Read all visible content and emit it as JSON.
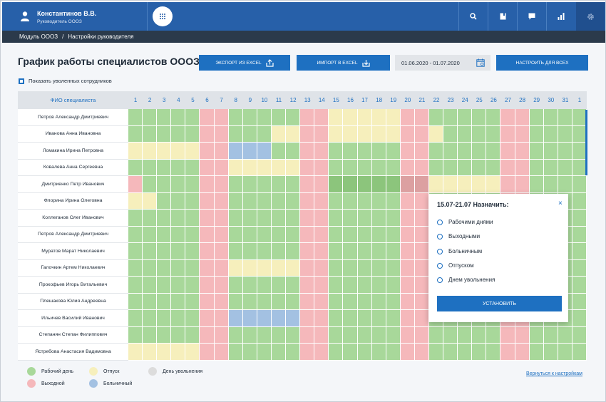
{
  "user": {
    "name": "Константинов В.В.",
    "role": "Руководитель ОООЗ"
  },
  "breadcrumb": {
    "module": "Модуль ОООЗ",
    "separator": "/",
    "current": "Настройки руководителя"
  },
  "page": {
    "title": "График работы специалистов ОООЗ"
  },
  "toolbar": {
    "export_label": "Экспорт из Excel",
    "import_label": "Импорт в Excel",
    "date_range": "01.06.2020 - 01.07.2020",
    "configure_all_label": "Настроить для всех"
  },
  "show_fired": {
    "label": "Показать уволенных сотрудников",
    "checked": true
  },
  "table": {
    "name_header": "ФИО специалиста",
    "days": [
      "1",
      "2",
      "3",
      "4",
      "5",
      "6",
      "7",
      "8",
      "9",
      "10",
      "11",
      "12",
      "13",
      "14",
      "15",
      "16",
      "17",
      "18",
      "19",
      "20",
      "21",
      "22",
      "23",
      "24",
      "25",
      "26",
      "27",
      "28",
      "29",
      "30",
      "31",
      "1"
    ],
    "weekend_columns": [
      6,
      7,
      13,
      14,
      20,
      21,
      27,
      28
    ],
    "rows": [
      {
        "name": "Петров Александр Дмитриевич",
        "vacation": [
          [
            15,
            19
          ]
        ],
        "sick": []
      },
      {
        "name": "Иванова Анна Ивановна",
        "vacation": [
          [
            11,
            22
          ]
        ],
        "sick": []
      },
      {
        "name": "Ломакина Ирина Петровна",
        "vacation": [
          [
            1,
            5
          ]
        ],
        "sick": [
          [
            8,
            10
          ]
        ]
      },
      {
        "name": "Ковалева Анна Сергеевна",
        "vacation": [
          [
            8,
            12
          ]
        ],
        "sick": []
      },
      {
        "name": "Дмитриенко Петр Иванович",
        "vacation": [
          [
            22,
            27
          ]
        ],
        "sick": [],
        "first_day_weekend": true,
        "selected": [
          15,
          21
        ]
      },
      {
        "name": "Флорина Ирина Олеговна",
        "vacation": [
          [
            1,
            2
          ]
        ],
        "sick": []
      },
      {
        "name": "Коллеганов Олег Иванович",
        "vacation": [],
        "sick": []
      },
      {
        "name": "Петров Александр Дмитриевич",
        "vacation": [],
        "sick": []
      },
      {
        "name": "Муратов Марат Николаевич",
        "vacation": [],
        "sick": []
      },
      {
        "name": "Галочкин Артем Николаевич",
        "vacation": [
          [
            8,
            12
          ]
        ],
        "sick": []
      },
      {
        "name": "Прокофьев Игорь Витальевич",
        "vacation": [],
        "sick": []
      },
      {
        "name": "Плешакова Юлия Андреевна",
        "vacation": [],
        "sick": []
      },
      {
        "name": "Ильичев Василий Иванович",
        "vacation": [],
        "sick": [
          [
            8,
            12
          ]
        ]
      },
      {
        "name": "Степанян Степан Филиппович",
        "vacation": [],
        "sick": []
      },
      {
        "name": "Ястребова Анастасия Вадимовна",
        "vacation": [
          [
            1,
            5
          ]
        ],
        "sick": []
      }
    ]
  },
  "popup": {
    "title": "15.07-21.07 Назначить:",
    "close": "×",
    "options": [
      "Рабочими днями",
      "Выходными",
      "Больничным",
      "Отпуском",
      "Днем увольнения"
    ],
    "submit_label": "Установить"
  },
  "legend": {
    "items": [
      {
        "label": "Рабочий день",
        "color": "#a8d89a"
      },
      {
        "label": "Отпуск",
        "color": "#f6efbc"
      },
      {
        "label": "День увольнения",
        "color": "#dcdcdc"
      },
      {
        "label": "Выходной",
        "color": "#f5b8bb"
      },
      {
        "label": "Больничный",
        "color": "#a3c1e2"
      }
    ]
  },
  "back_link": "Вернуться к настройкам",
  "colors": {
    "work": "#a8d89a",
    "weekend": "#f5b8bb",
    "vacation": "#f6efbc",
    "sick": "#a3c1e2",
    "selected_work": "#8cc57c",
    "selected_weekend": "#dca0a1",
    "accent": "#1e70c1",
    "header": "#2760a9"
  }
}
